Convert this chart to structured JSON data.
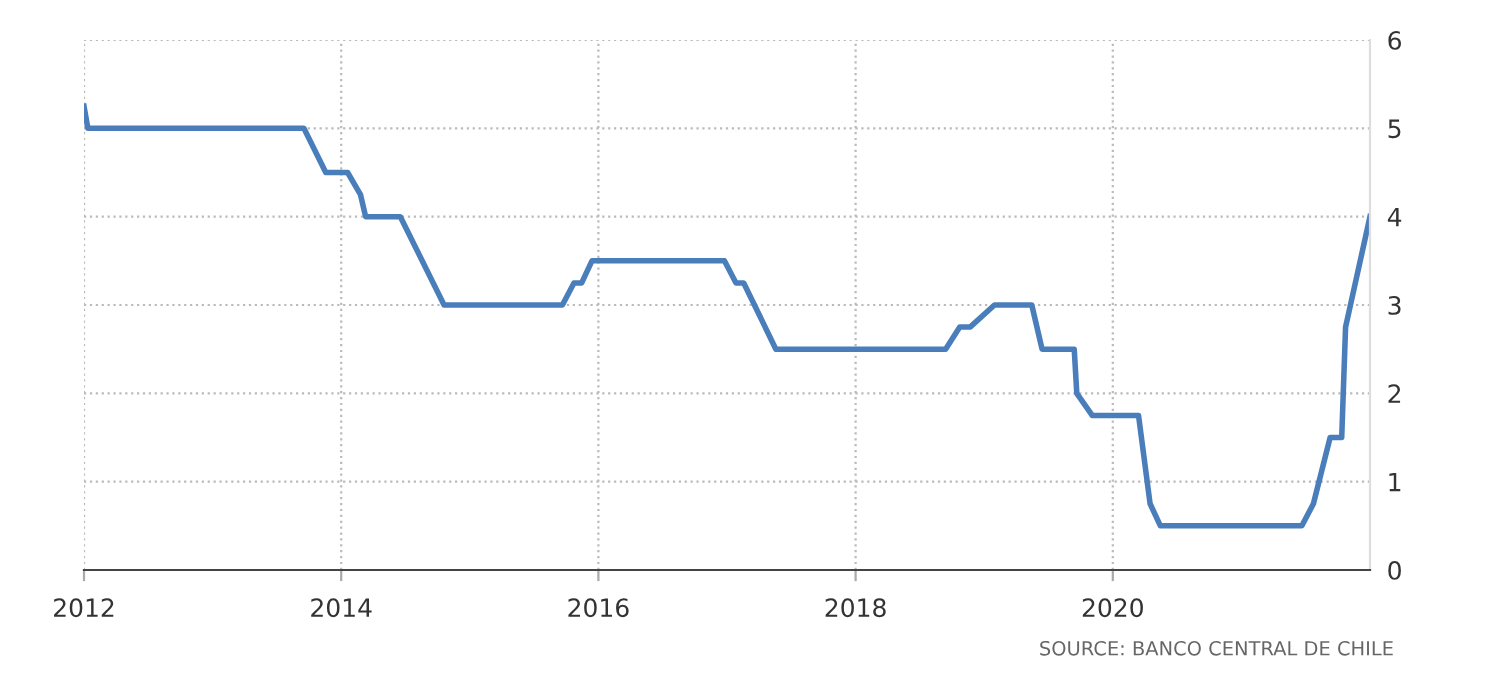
{
  "chart_data": {
    "type": "line",
    "x": [
      2012.0,
      2012.03,
      2013.71,
      2013.88,
      2014.05,
      2014.15,
      2014.19,
      2014.46,
      2014.8,
      2015.72,
      2015.81,
      2015.87,
      2015.95,
      2016.98,
      2017.07,
      2017.13,
      2017.38,
      2018.7,
      2018.81,
      2018.89,
      2019.08,
      2019.37,
      2019.45,
      2019.7,
      2019.72,
      2019.84,
      2020.2,
      2020.29,
      2020.37,
      2021.47,
      2021.56,
      2021.69,
      2021.78,
      2021.81,
      2022.0
    ],
    "series": [
      {
        "color": "#4a7ebb",
        "values": [
          5.25,
          5.0,
          5.0,
          4.5,
          4.5,
          4.25,
          4.0,
          4.0,
          3.0,
          3.0,
          3.25,
          3.25,
          3.5,
          3.5,
          3.25,
          3.25,
          2.5,
          2.5,
          2.75,
          2.75,
          3.0,
          3.0,
          2.5,
          2.5,
          2.0,
          1.75,
          1.75,
          0.75,
          0.5,
          0.5,
          0.75,
          1.5,
          1.5,
          2.75,
          4.0
        ]
      }
    ],
    "xlim": [
      2012,
      2022
    ],
    "xticks": [
      2012,
      2014,
      2016,
      2018,
      2020
    ],
    "ylim": [
      0,
      6
    ],
    "yticks": [
      0,
      1,
      2,
      3,
      4,
      5,
      6
    ],
    "grid": true,
    "legend": false,
    "marker": "none",
    "line_style": "solid",
    "annotations": [
      "SOURCE: BANCO CENTRAL DE CHILE"
    ]
  }
}
